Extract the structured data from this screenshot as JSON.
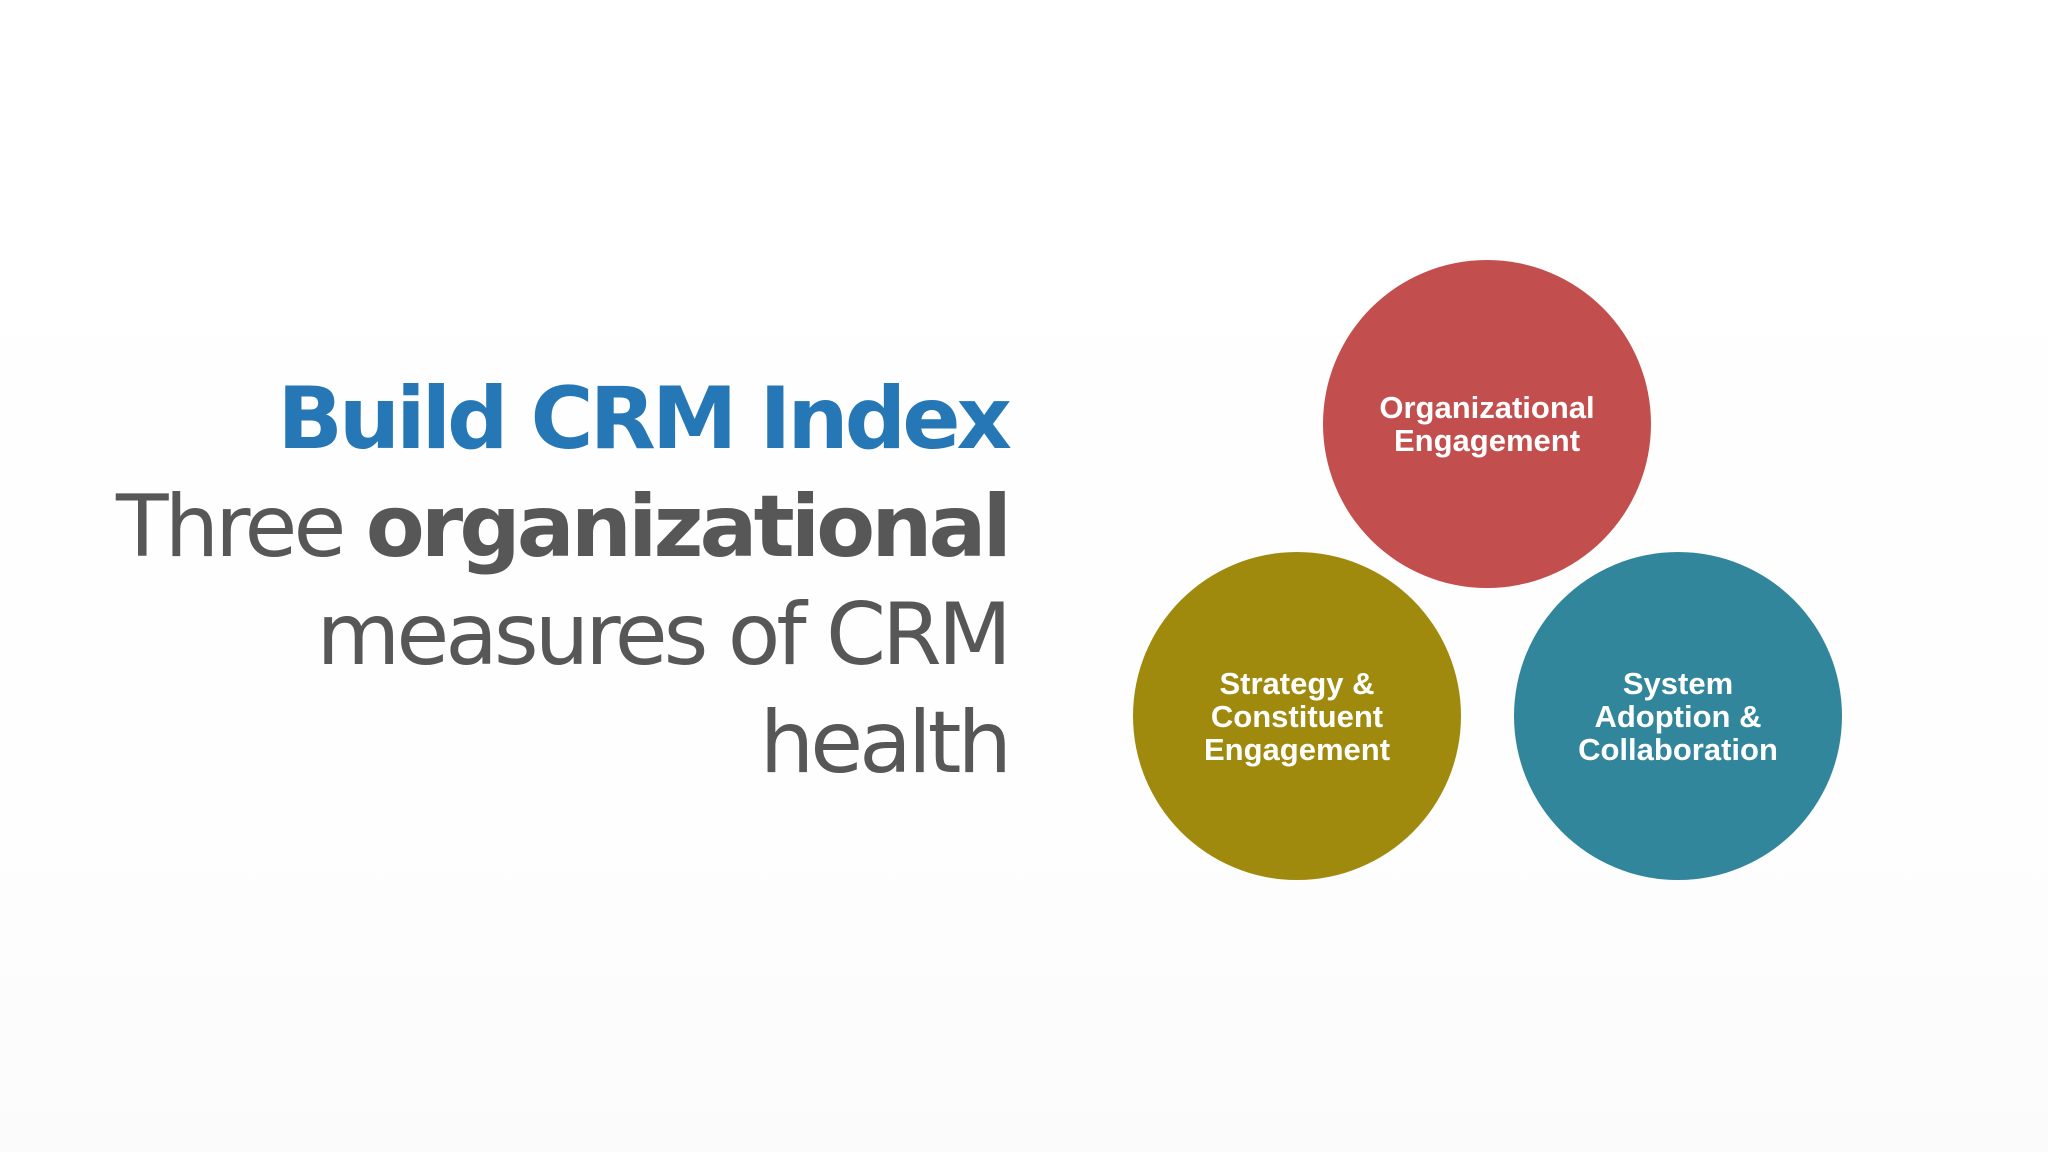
{
  "title": {
    "text": "Build CRM Index",
    "color": "#2577b5"
  },
  "subtitle": {
    "line1_regular": "Three ",
    "line1_bold": "organizational",
    "line2": "measures of CRM",
    "line3": "health",
    "color": "#575757"
  },
  "diagram": {
    "circles": [
      {
        "label": "Organizational\nEngagement",
        "color": "#c24e4e"
      },
      {
        "label": "Strategy &\nConstituent\nEngagement",
        "color": "#a08a0e"
      },
      {
        "label": "System\nAdoption &\nCollaboration",
        "color": "#32869c"
      }
    ]
  }
}
